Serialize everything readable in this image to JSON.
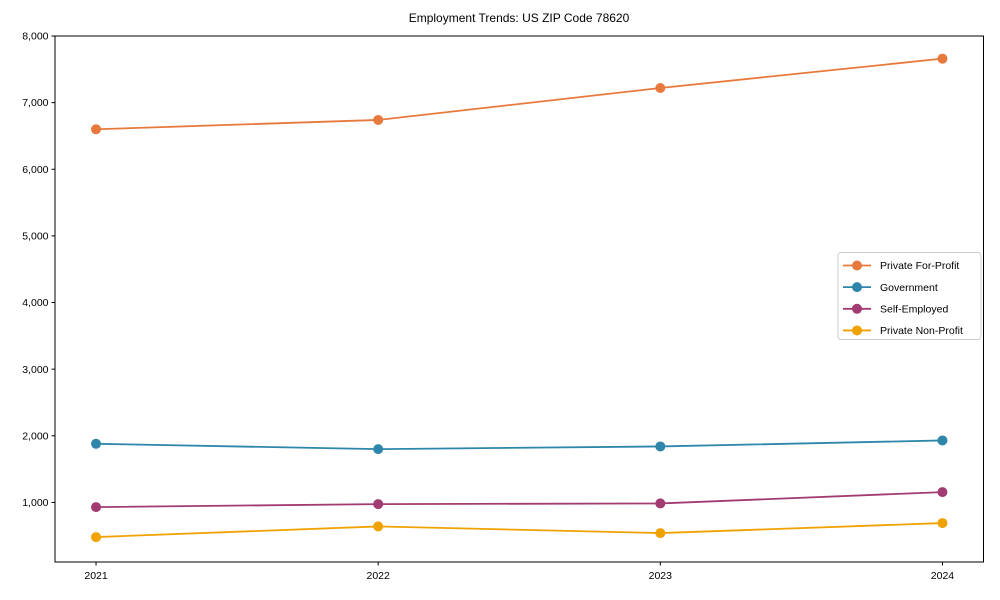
{
  "chart_data": {
    "type": "line",
    "title": "Employment Trends: US ZIP Code 78620",
    "categories": [
      "2021",
      "2022",
      "2023",
      "2024"
    ],
    "xlabel": "",
    "ylabel": "",
    "ylim": [
      106,
      8000
    ],
    "y_tick_values": [
      1000,
      2000,
      3000,
      4000,
      5000,
      6000,
      7000,
      8000
    ],
    "y_tick_labels": [
      "1,000",
      "2,000",
      "3,000",
      "4,000",
      "5,000",
      "6,000",
      "7,000",
      "8,000"
    ],
    "grid": false,
    "legend_position": "center right",
    "legend_border_color": "#cccccc",
    "background_color": "#ffffff",
    "axis_color": "#000000",
    "series": [
      {
        "name": "Private For-Profit",
        "color": "#E8793D",
        "values": [
          6600,
          6740,
          7220,
          7660
        ]
      },
      {
        "name": "Government",
        "color": "#2E86AB",
        "values": [
          1880,
          1800,
          1840,
          1930
        ]
      },
      {
        "name": "Self-Employed",
        "color": "#A23B72",
        "values": [
          930,
          975,
          985,
          1155
        ]
      },
      {
        "name": "Private Non-Profit",
        "color": "#F0A202",
        "values": [
          480,
          640,
          540,
          690
        ]
      }
    ]
  }
}
